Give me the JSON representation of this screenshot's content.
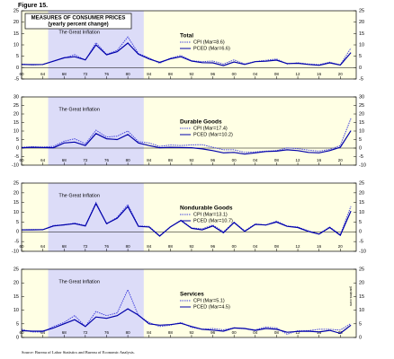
{
  "figure_label": "Figure 15.",
  "source": "Source: Bureau of Labor Statistics and Bureau of Economic Analysis.",
  "chart_data": [
    {
      "type": "line",
      "title": "MEASURES OF CONSUMER PRICES",
      "subtitle": "(yearly percent change)",
      "panel_title": "Total",
      "annotation": "The Great Inflation",
      "highlight_range": [
        1965,
        1983
      ],
      "x": [
        1960,
        1962,
        1964,
        1966,
        1968,
        1970,
        1972,
        1974,
        1976,
        1978,
        1980,
        1982,
        1984,
        1986,
        1988,
        1990,
        1992,
        1994,
        1996,
        1998,
        2000,
        2002,
        2004,
        2006,
        2008,
        2010,
        2012,
        2014,
        2016,
        2018,
        2020,
        2022
      ],
      "series": [
        {
          "name": "CPI (Mar=8.6)",
          "color": "#4444dd",
          "style": "dotted",
          "values": [
            1.5,
            1.2,
            1.3,
            2.9,
            4.2,
            5.7,
            3.3,
            11.0,
            5.8,
            7.6,
            13.5,
            6.2,
            4.3,
            1.9,
            4.1,
            5.4,
            3.0,
            2.6,
            2.9,
            1.6,
            3.4,
            1.6,
            2.7,
            3.2,
            3.8,
            1.6,
            2.1,
            1.6,
            1.3,
            2.4,
            1.2,
            8.6
          ]
        },
        {
          "name": "PCED (Mar=6.6)",
          "color": "#0000aa",
          "style": "solid",
          "values": [
            1.4,
            1.3,
            1.4,
            2.8,
            4.3,
            4.8,
            3.4,
            10.0,
            5.6,
            7.0,
            10.8,
            5.9,
            3.8,
            2.3,
            3.9,
            4.8,
            2.9,
            2.2,
            2.1,
            0.9,
            2.5,
            1.4,
            2.6,
            2.8,
            3.3,
            1.8,
            1.9,
            1.4,
            1.0,
            2.1,
            1.1,
            6.6
          ]
        }
      ],
      "xlim": [
        1960,
        2023
      ],
      "ylim": [
        -5,
        25
      ],
      "yticks": [
        -5,
        0,
        5,
        10,
        15,
        20,
        25
      ],
      "xticks": [
        {
          "value": 1960,
          "label": "60"
        },
        {
          "value": 1964,
          "label": "64"
        },
        {
          "value": 1968,
          "label": "68"
        },
        {
          "value": 1972,
          "label": "72"
        },
        {
          "value": 1976,
          "label": "76"
        },
        {
          "value": 1980,
          "label": "80"
        },
        {
          "value": 1984,
          "label": "84"
        },
        {
          "value": 1988,
          "label": "88"
        },
        {
          "value": 1992,
          "label": "92"
        },
        {
          "value": 1996,
          "label": "96"
        },
        {
          "value": 2000,
          "label": "00"
        },
        {
          "value": 2004,
          "label": "04"
        },
        {
          "value": 2008,
          "label": "08"
        },
        {
          "value": 2012,
          "label": "12"
        },
        {
          "value": 2016,
          "label": "16"
        },
        {
          "value": 2020,
          "label": "20"
        }
      ]
    },
    {
      "type": "line",
      "panel_title": "Durable Goods",
      "annotation": "The Great Inflation",
      "highlight_range": [
        1965,
        1983
      ],
      "x": [
        1960,
        1962,
        1964,
        1966,
        1968,
        1970,
        1972,
        1974,
        1976,
        1978,
        1980,
        1982,
        1984,
        1986,
        1988,
        1990,
        1992,
        1994,
        1996,
        1998,
        2000,
        2002,
        2004,
        2006,
        2008,
        2010,
        2012,
        2014,
        2016,
        2018,
        2020,
        2022
      ],
      "series": [
        {
          "name": "CPI (Mar=17.4)",
          "color": "#4444dd",
          "style": "dotted",
          "values": [
            0.5,
            0.8,
            0.6,
            1.0,
            4.0,
            5.5,
            2.5,
            10.5,
            6.5,
            7.0,
            10.0,
            3.8,
            3.0,
            1.0,
            1.8,
            1.5,
            1.9,
            2.0,
            0.5,
            -1.0,
            -1.0,
            -2.5,
            -2.2,
            -1.8,
            -1.5,
            0.1,
            -0.3,
            -1.2,
            -1.8,
            -0.8,
            1.5,
            17.4
          ]
        },
        {
          "name": "PCED (Mar=10.2)",
          "color": "#0000aa",
          "style": "solid",
          "values": [
            0.2,
            0.5,
            0.3,
            0.2,
            3.0,
            3.5,
            1.5,
            8.5,
            5.5,
            5.0,
            8.0,
            3.0,
            1.5,
            0.2,
            0.5,
            0.3,
            0.2,
            -0.5,
            -1.5,
            -2.8,
            -2.5,
            -3.5,
            -2.8,
            -2.0,
            -1.8,
            -1.0,
            -1.5,
            -2.5,
            -2.8,
            -1.5,
            0.5,
            10.2
          ]
        }
      ],
      "xlim": [
        1960,
        2023
      ],
      "ylim": [
        -10,
        30
      ],
      "yticks": [
        -10,
        -5,
        0,
        5,
        10,
        15,
        20,
        25,
        30
      ],
      "xticks": [
        {
          "value": 1960,
          "label": "60"
        },
        {
          "value": 1964,
          "label": "64"
        },
        {
          "value": 1968,
          "label": "68"
        },
        {
          "value": 1972,
          "label": "72"
        },
        {
          "value": 1976,
          "label": "76"
        },
        {
          "value": 1980,
          "label": "80"
        },
        {
          "value": 1984,
          "label": "84"
        },
        {
          "value": 1988,
          "label": "88"
        },
        {
          "value": 1992,
          "label": "92"
        },
        {
          "value": 1996,
          "label": "96"
        },
        {
          "value": 2000,
          "label": "00"
        },
        {
          "value": 2004,
          "label": "04"
        },
        {
          "value": 2008,
          "label": "08"
        },
        {
          "value": 2012,
          "label": "12"
        },
        {
          "value": 2016,
          "label": "16"
        },
        {
          "value": 2020,
          "label": "20"
        }
      ]
    },
    {
      "type": "line",
      "panel_title": "Nondurable Goods",
      "annotation": "The Great Inflation",
      "highlight_range": [
        1965,
        1983
      ],
      "x": [
        1960,
        1962,
        1964,
        1966,
        1968,
        1970,
        1972,
        1974,
        1976,
        1978,
        1980,
        1982,
        1984,
        1986,
        1988,
        1990,
        1992,
        1994,
        1996,
        1998,
        2000,
        2002,
        2004,
        2006,
        2008,
        2010,
        2012,
        2014,
        2016,
        2018,
        2020,
        2022
      ],
      "series": [
        {
          "name": "CPI (Mar=13.1)",
          "color": "#4444dd",
          "style": "dotted",
          "values": [
            1.0,
            1.2,
            1.0,
            3.3,
            3.5,
            4.5,
            3.2,
            15.0,
            4.0,
            7.5,
            14.0,
            3.0,
            2.8,
            -2.0,
            2.5,
            6.0,
            2.0,
            1.5,
            3.5,
            0.0,
            5.0,
            0.5,
            4.0,
            3.5,
            5.5,
            3.0,
            2.5,
            0.5,
            -1.0,
            2.5,
            -1.5,
            13.1
          ]
        },
        {
          "name": "PCED (Mar=10.7)",
          "color": "#0000aa",
          "style": "solid",
          "values": [
            1.0,
            1.0,
            1.1,
            3.0,
            3.6,
            4.2,
            3.0,
            14.5,
            4.2,
            7.0,
            13.0,
            2.8,
            2.5,
            -2.2,
            2.5,
            5.8,
            1.8,
            1.0,
            3.0,
            -0.5,
            4.8,
            0.2,
            3.8,
            3.5,
            5.0,
            2.8,
            2.2,
            0.2,
            -1.2,
            2.2,
            -1.8,
            10.7
          ]
        }
      ],
      "xlim": [
        1960,
        2023
      ],
      "ylim": [
        -10,
        25
      ],
      "yticks": [
        -10,
        -5,
        0,
        5,
        10,
        15,
        20,
        25
      ],
      "xticks": [
        {
          "value": 1960,
          "label": "60"
        },
        {
          "value": 1964,
          "label": "64"
        },
        {
          "value": 1968,
          "label": "68"
        },
        {
          "value": 1972,
          "label": "72"
        },
        {
          "value": 1976,
          "label": "76"
        },
        {
          "value": 1980,
          "label": "80"
        },
        {
          "value": 1984,
          "label": "84"
        },
        {
          "value": 1988,
          "label": "88"
        },
        {
          "value": 1992,
          "label": "92"
        },
        {
          "value": 1996,
          "label": "96"
        },
        {
          "value": 2000,
          "label": "00"
        },
        {
          "value": 2004,
          "label": "04"
        },
        {
          "value": 2008,
          "label": "08"
        },
        {
          "value": 2012,
          "label": "12"
        },
        {
          "value": 2016,
          "label": "16"
        },
        {
          "value": 2020,
          "label": "20"
        }
      ]
    },
    {
      "type": "line",
      "panel_title": "Services",
      "annotation": "The Great Inflation",
      "watermark": "yardeni.com",
      "highlight_range": [
        1965,
        1983
      ],
      "x": [
        1960,
        1962,
        1964,
        1966,
        1968,
        1970,
        1972,
        1974,
        1976,
        1978,
        1980,
        1982,
        1984,
        1986,
        1988,
        1990,
        1992,
        1994,
        1996,
        1998,
        2000,
        2002,
        2004,
        2006,
        2008,
        2010,
        2012,
        2014,
        2016,
        2018,
        2020,
        2022
      ],
      "series": [
        {
          "name": "CPI (Mar=5.1)",
          "color": "#4444dd",
          "style": "dotted",
          "values": [
            3.0,
            2.0,
            2.0,
            4.0,
            5.5,
            8.0,
            4.0,
            9.5,
            8.0,
            9.0,
            17.5,
            8.0,
            5.5,
            4.0,
            4.5,
            5.5,
            3.7,
            3.0,
            3.3,
            2.8,
            3.5,
            3.2,
            2.8,
            3.8,
            3.5,
            1.2,
            2.5,
            2.5,
            3.0,
            3.0,
            2.7,
            5.1
          ]
        },
        {
          "name": "PCED (Mar=4.5)",
          "color": "#0000aa",
          "style": "solid",
          "values": [
            2.5,
            2.3,
            2.3,
            3.5,
            5.0,
            6.5,
            4.0,
            7.5,
            7.0,
            8.0,
            10.5,
            8.2,
            5.0,
            4.5,
            4.7,
            5.2,
            4.0,
            3.0,
            2.7,
            2.3,
            3.5,
            3.3,
            2.6,
            3.3,
            3.0,
            1.9,
            2.2,
            2.3,
            2.0,
            2.6,
            1.5,
            4.5
          ]
        }
      ],
      "xlim": [
        1960,
        2023
      ],
      "ylim": [
        0,
        25
      ],
      "yticks": [
        0,
        5,
        10,
        15,
        20,
        25
      ],
      "xticks": [
        {
          "value": 1960,
          "label": "60"
        },
        {
          "value": 1964,
          "label": "64"
        },
        {
          "value": 1968,
          "label": "68"
        },
        {
          "value": 1972,
          "label": "72"
        },
        {
          "value": 1976,
          "label": "76"
        },
        {
          "value": 1980,
          "label": "80"
        },
        {
          "value": 1984,
          "label": "84"
        },
        {
          "value": 1988,
          "label": "88"
        },
        {
          "value": 1992,
          "label": "92"
        },
        {
          "value": 1996,
          "label": "96"
        },
        {
          "value": 2000,
          "label": "00"
        },
        {
          "value": 2004,
          "label": "04"
        },
        {
          "value": 2008,
          "label": "08"
        },
        {
          "value": 2012,
          "label": "12"
        },
        {
          "value": 2016,
          "label": "16"
        },
        {
          "value": 2020,
          "label": "20"
        }
      ]
    }
  ]
}
